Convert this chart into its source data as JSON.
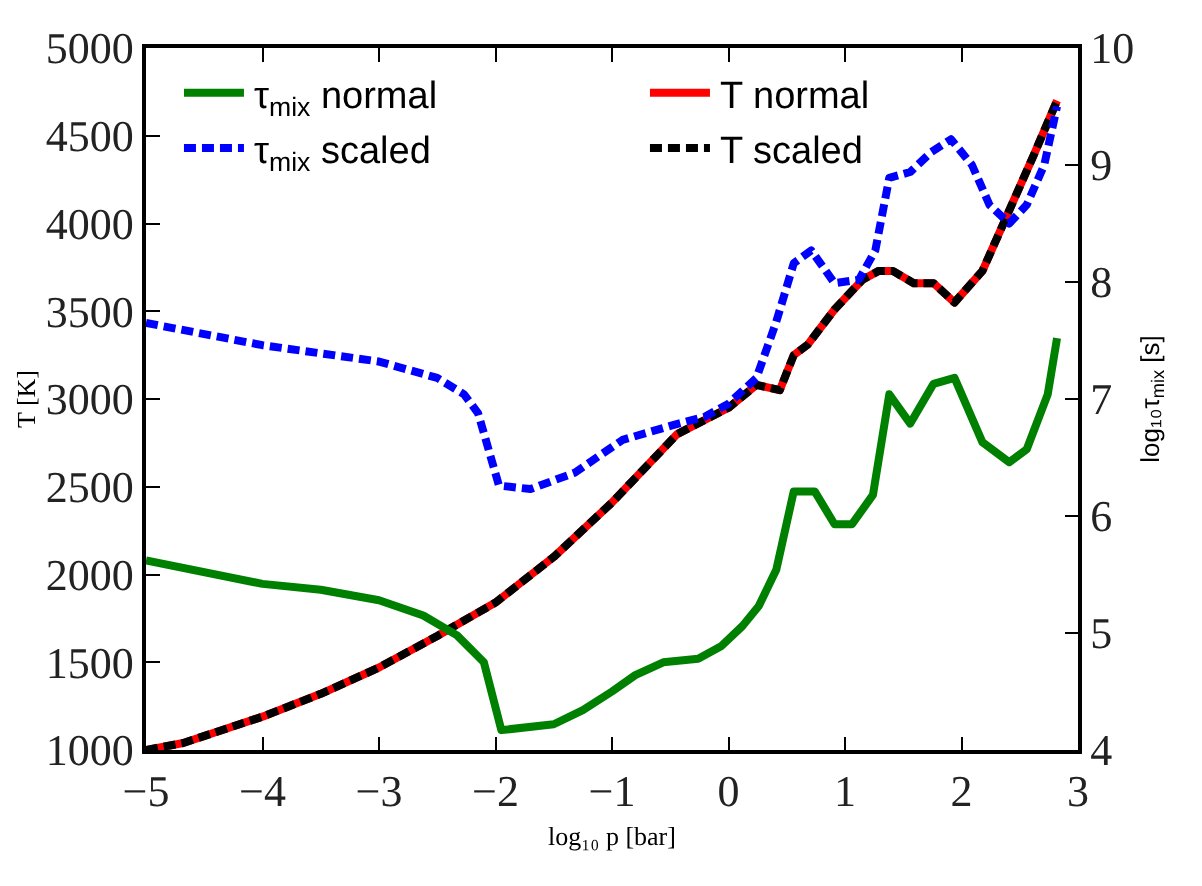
{
  "chart_data": {
    "type": "line",
    "xlabel": "log₁₀ p [bar]",
    "ylabel": "T [K]",
    "y2label": "log₁₀τ$_{mix}$ [s]",
    "xlim": [
      -5,
      3
    ],
    "xticks": [
      -5,
      -4,
      -3,
      -2,
      -1,
      0,
      1,
      2,
      3
    ],
    "ylim": [
      1000,
      5000
    ],
    "yticks": [
      1000,
      1500,
      2000,
      2500,
      3000,
      3500,
      4000,
      4500,
      5000
    ],
    "y2lim": [
      4,
      10
    ],
    "y2ticks": [
      4,
      5,
      6,
      7,
      8,
      9,
      10
    ],
    "legend": "top",
    "marker": "none",
    "series": [
      {
        "name": "τ$_{mix}$ normal",
        "color": "#008000",
        "axis": "y2",
        "line_style": "solid",
        "x": [
          -5,
          -4,
          -3.5,
          -3,
          -2.62,
          -2.33,
          -2.1,
          -1.95,
          -1.5,
          -1.25,
          -1.0,
          -0.8,
          -0.56,
          -0.26,
          -0.06,
          0.12,
          0.26,
          0.41,
          0.56,
          0.74,
          0.91,
          1.06,
          1.24,
          1.38,
          1.56,
          1.76,
          1.94,
          2.18,
          2.41,
          2.56,
          2.74,
          2.82
        ],
        "values": [
          5.62,
          5.42,
          5.37,
          5.28,
          5.15,
          4.98,
          4.75,
          4.17,
          4.22,
          4.34,
          4.5,
          4.64,
          4.75,
          4.78,
          4.89,
          5.06,
          5.23,
          5.54,
          6.21,
          6.21,
          5.93,
          5.93,
          6.18,
          7.04,
          6.79,
          7.13,
          7.18,
          6.63,
          6.46,
          6.57,
          7.04,
          7.52
        ]
      },
      {
        "name": "T normal",
        "color": "#ff0000",
        "axis": "y",
        "line_style": "solid",
        "x": [
          -5,
          -4.68,
          -4,
          -3.5,
          -3,
          -2.5,
          -2,
          -1.5,
          -1,
          -0.44,
          0,
          0.24,
          0.44,
          0.56,
          0.68,
          0.91,
          1.15,
          1.29,
          1.41,
          1.59,
          1.76,
          1.94,
          2.18,
          2.38,
          2.62,
          2.82
        ],
        "values": [
          1000,
          1040,
          1190,
          1320,
          1470,
          1650,
          1840,
          2100,
          2410,
          2800,
          2950,
          3080,
          3050,
          3250,
          3310,
          3510,
          3680,
          3730,
          3730,
          3660,
          3660,
          3550,
          3730,
          4030,
          4390,
          4700
        ]
      },
      {
        "name": "τ$_{mix}$ scaled",
        "color": "#0000ff",
        "axis": "y2",
        "line_style": "dashed",
        "x": [
          -5,
          -4,
          -3,
          -2.5,
          -2.27,
          -2.15,
          -1.97,
          -1.7,
          -1.32,
          -0.91,
          -0.5,
          -0.2,
          0,
          0.24,
          0.41,
          0.56,
          0.71,
          0.91,
          1.12,
          1.26,
          1.38,
          1.56,
          1.74,
          1.91,
          2.09,
          2.24,
          2.41,
          2.56,
          2.71,
          2.82
        ],
        "values": [
          7.65,
          7.46,
          7.32,
          7.18,
          7.04,
          6.88,
          6.26,
          6.23,
          6.37,
          6.65,
          6.77,
          6.85,
          6.96,
          7.18,
          7.66,
          8.16,
          8.27,
          7.99,
          8.02,
          8.27,
          8.89,
          8.94,
          9.11,
          9.22,
          9.0,
          8.66,
          8.5,
          8.66,
          9.0,
          9.5
        ]
      },
      {
        "name": "T scaled",
        "color": "#000000",
        "axis": "y",
        "line_style": "dashed",
        "x": [
          -5,
          -4.68,
          -4,
          -3.5,
          -3,
          -2.5,
          -2,
          -1.5,
          -1,
          -0.44,
          0,
          0.24,
          0.44,
          0.56,
          0.68,
          0.91,
          1.15,
          1.29,
          1.41,
          1.59,
          1.76,
          1.94,
          2.18,
          2.38,
          2.62,
          2.82
        ],
        "values": [
          1000,
          1040,
          1190,
          1320,
          1470,
          1650,
          1840,
          2100,
          2410,
          2800,
          2950,
          3080,
          3050,
          3250,
          3310,
          3510,
          3680,
          3730,
          3730,
          3660,
          3660,
          3550,
          3730,
          4030,
          4390,
          4700
        ]
      }
    ]
  }
}
